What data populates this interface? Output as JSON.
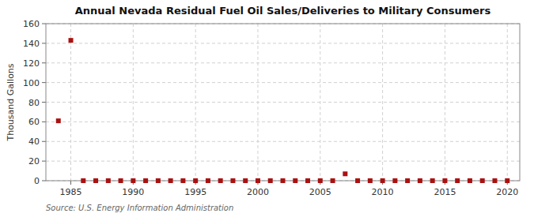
{
  "chart_data": {
    "type": "scatter",
    "title": "Annual Nevada Residual Fuel Oil Sales/Deliveries to Military Consumers",
    "ylabel": "Thousand Gallons",
    "annotations": [
      "Source: U.S. Energy Information Administration"
    ],
    "x": [
      1984,
      1985,
      1986,
      1987,
      1988,
      1989,
      1990,
      1991,
      1992,
      1993,
      1994,
      1995,
      1996,
      1997,
      1998,
      1999,
      2000,
      2001,
      2002,
      2003,
      2004,
      2005,
      2006,
      2007,
      2008,
      2009,
      2010,
      2011,
      2012,
      2013,
      2014,
      2015,
      2016,
      2017,
      2018,
      2019,
      2020
    ],
    "values": [
      61,
      143,
      0,
      0,
      0,
      0,
      0,
      0,
      0,
      0,
      0,
      0,
      0,
      0,
      0,
      0,
      0,
      0,
      0,
      0,
      0,
      0,
      0,
      7,
      0,
      0,
      0,
      0,
      0,
      0,
      0,
      0,
      0,
      0,
      0,
      0,
      0
    ],
    "color": "#aa1111",
    "marker": "square",
    "xlim": [
      1983,
      2021
    ],
    "ylim": [
      0,
      160
    ],
    "xticks": [
      1985,
      1990,
      1995,
      2000,
      2005,
      2010,
      2015,
      2020
    ],
    "yticks": [
      0,
      20,
      40,
      60,
      80,
      100,
      120,
      140,
      160
    ],
    "grid": true
  }
}
